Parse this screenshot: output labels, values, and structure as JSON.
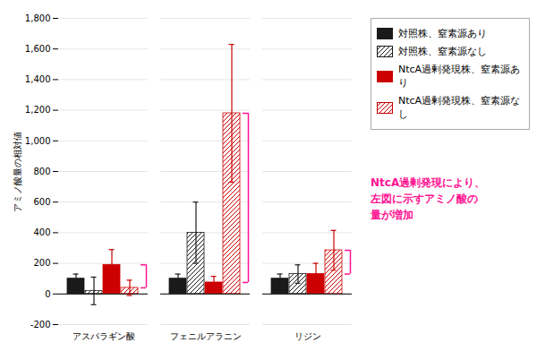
{
  "chart_data": {
    "type": "bar",
    "categories": [
      "アスパラギン酸",
      "フェニルアラニン",
      "リジン"
    ],
    "series": [
      {
        "name": "対照株、窒素源あり",
        "color": "#1a1a1a",
        "marker": "solid",
        "values": [
          100,
          100,
          100
        ],
        "errors": [
          30,
          30,
          30
        ]
      },
      {
        "name": "対照株、窒素源なし",
        "color": "#1a1a1a",
        "marker": "hatched",
        "values": [
          20,
          400,
          130
        ],
        "errors": [
          90,
          200,
          60
        ]
      },
      {
        "name": "NtcA過剰発現株、窒素源あり",
        "color": "#cc0000",
        "marker": "solid",
        "values": [
          190,
          75,
          130
        ],
        "errors": [
          100,
          40,
          70
        ]
      },
      {
        "name": "NtcA過剰発現株、窒素源なし",
        "color": "#cc0000",
        "marker": "hatched",
        "values": [
          40,
          1180,
          285
        ],
        "errors": [
          50,
          450,
          130
        ]
      }
    ],
    "ylabel": "アミノ酸量の相対値",
    "ylim": [
      -200,
      1800
    ],
    "yticks": [
      -200,
      0,
      200,
      400,
      600,
      800,
      {
        "value": 1000,
        "label": "1,000"
      },
      {
        "value": 1200,
        "label": "1,200"
      },
      {
        "value": 1400,
        "label": "1,400"
      },
      {
        "value": 1600,
        "label": "1,600"
      },
      {
        "value": 1800,
        "label": "1,800"
      }
    ],
    "grid": true,
    "legend": "right",
    "brackets": [
      {
        "category": "アスパラギン酸",
        "low": 40,
        "high": 190,
        "color": "#FF1493"
      },
      {
        "category": "フェニルアラニン",
        "low": 75,
        "high": 1180,
        "color": "#FF1493"
      },
      {
        "category": "リジン",
        "low": 130,
        "high": 285,
        "color": "#FF1493"
      }
    ],
    "annotations": [
      {
        "text": "NtcA過剰発現により、\n左図に示すアミノ酸の\n量が増加",
        "color": "#FF1493"
      }
    ]
  }
}
